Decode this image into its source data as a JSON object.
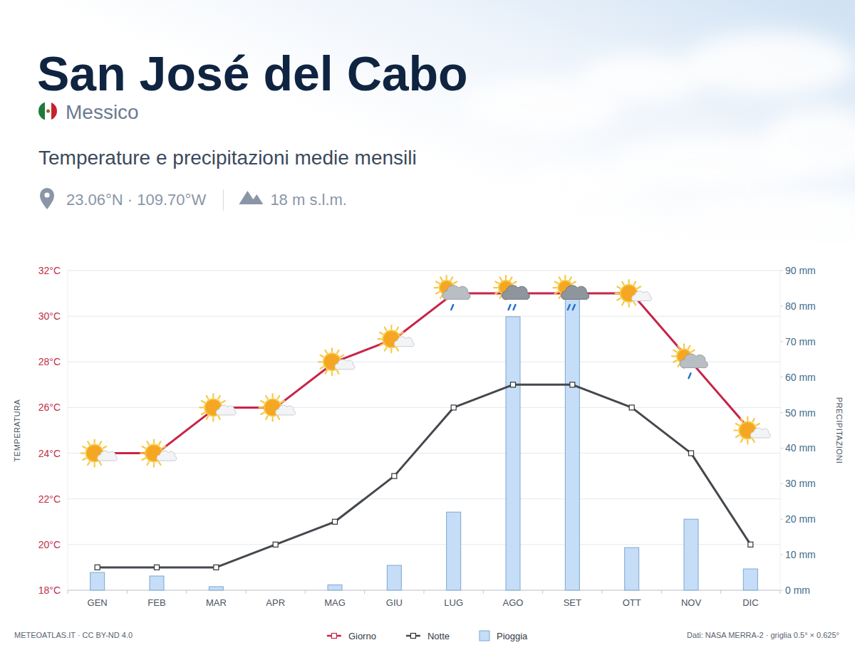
{
  "chart_data": {
    "type": "line",
    "title": "San José del Cabo",
    "subtitle": "Temperature e precipitazioni medie mensili",
    "annotations": [
      "Messico",
      "23.06°N · 109.70°W",
      "18 m s.l.m.",
      "METEOATLAS.IT · CC BY-ND 4.0",
      "Dati: NASA MERRA-2 · griglia 0.5° × 0.625°"
    ],
    "y_label": "TEMPERATURA",
    "y2_label": "PRECIPITAZIONI",
    "categories": [
      "GEN",
      "FEB",
      "MAR",
      "APR",
      "MAG",
      "GIU",
      "LUG",
      "AGO",
      "SET",
      "OTT",
      "NOV",
      "DIC"
    ],
    "series": [
      {
        "name": "Giorno",
        "type": "line",
        "color": "#c8234a",
        "marker": "square",
        "values": [
          24,
          24,
          26,
          26,
          28,
          29,
          31,
          31,
          31,
          31,
          28,
          25
        ]
      },
      {
        "name": "Notte",
        "type": "line",
        "color": "#44484e",
        "marker": "square",
        "values": [
          19,
          19,
          19,
          20,
          21,
          23,
          26,
          27,
          27,
          26,
          24,
          20
        ]
      },
      {
        "name": "Pioggia",
        "type": "bar",
        "axis": "y2",
        "color": "#c6ddf7",
        "values": [
          5,
          4,
          1,
          0,
          1.5,
          7,
          22,
          77,
          82,
          12,
          20,
          6
        ]
      }
    ],
    "ylim": [
      18,
      32
    ],
    "yticks": [
      {
        "value": 18,
        "label": "18°C"
      },
      {
        "value": 20,
        "label": "20°C"
      },
      {
        "value": 22,
        "label": "22°C"
      },
      {
        "value": 24,
        "label": "24°C"
      },
      {
        "value": 26,
        "label": "26°C"
      },
      {
        "value": 28,
        "label": "28°C"
      },
      {
        "value": 30,
        "label": "30°C"
      },
      {
        "value": 32,
        "label": "32°C"
      }
    ],
    "y2lim": [
      0,
      90
    ],
    "y2ticks": [
      {
        "value": 0,
        "label": "0 mm"
      },
      {
        "value": 10,
        "label": "10 mm"
      },
      {
        "value": 20,
        "label": "20 mm"
      },
      {
        "value": 30,
        "label": "30 mm"
      },
      {
        "value": 40,
        "label": "40 mm"
      },
      {
        "value": 50,
        "label": "50 mm"
      },
      {
        "value": 60,
        "label": "60 mm"
      },
      {
        "value": 70,
        "label": "70 mm"
      },
      {
        "value": 80,
        "label": "80 mm"
      },
      {
        "value": 90,
        "label": "90 mm"
      }
    ],
    "grid": true,
    "legend": "bottom"
  }
}
